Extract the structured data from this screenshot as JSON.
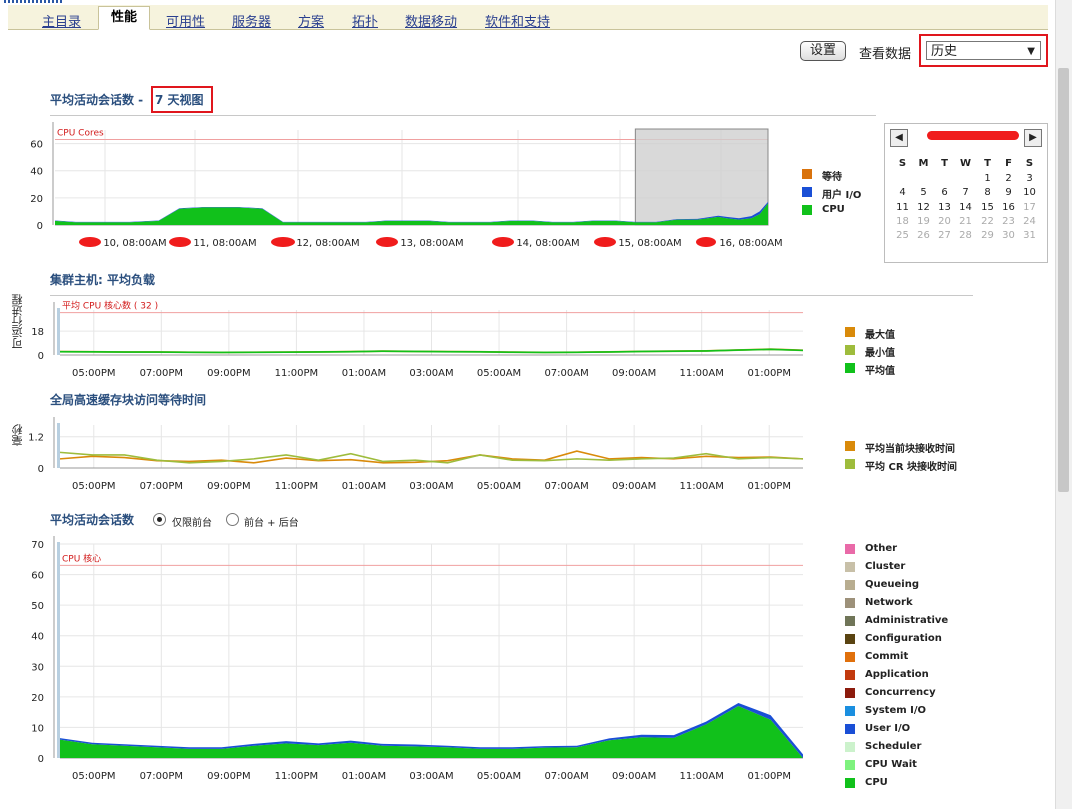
{
  "tabs": [
    {
      "label": "主目录",
      "active": false
    },
    {
      "label": "性能",
      "active": true
    },
    {
      "label": "可用性",
      "active": false
    },
    {
      "label": "服务器",
      "active": false
    },
    {
      "label": "方案",
      "active": false
    },
    {
      "label": "拓扑",
      "active": false
    },
    {
      "label": "数据移动",
      "active": false
    },
    {
      "label": "软件和支持",
      "active": false
    }
  ],
  "toolbar": {
    "settings_label": "设置",
    "view_data_label": "查看数据",
    "view_data_value": "历史"
  },
  "section1": {
    "title": "平均活动会话数 -",
    "link": "7 天视图"
  },
  "section2": {
    "title": "集群主机: 平均负载"
  },
  "section3": {
    "title": "全局高速缓存块访问等待时间"
  },
  "section4": {
    "title": "平均活动会话数",
    "radio1": "仅限前台",
    "radio2": "前台 + 后台"
  },
  "calendar": {
    "headers": [
      "S",
      "M",
      "T",
      "W",
      "T",
      "F",
      "S"
    ],
    "weeks": [
      [
        "",
        "",
        "",
        "",
        "1",
        "2",
        "3"
      ],
      [
        "4",
        "5",
        "6",
        "7",
        "8",
        "9",
        "10"
      ],
      [
        "11",
        "12",
        "13",
        "14",
        "15",
        "16",
        "17"
      ],
      [
        "18",
        "19",
        "20",
        "21",
        "22",
        "23",
        "24"
      ],
      [
        "25",
        "26",
        "27",
        "28",
        "29",
        "30",
        "31"
      ]
    ],
    "grey_from": 17
  },
  "chart_data": [
    {
      "type": "area",
      "title": "平均活动会话数 - 7 天视图",
      "reference_line": {
        "label": "CPU Cores",
        "value": 63
      },
      "ylim": [
        0,
        70
      ],
      "yticks": [
        0,
        20,
        40,
        60
      ],
      "xticks": [
        "10, 08:00AM",
        "11, 08:00AM",
        "12, 08:00AM",
        "13, 08:00AM",
        "14, 08:00AM",
        "15, 08:00AM",
        "16, 08:00AM"
      ],
      "x": [
        0,
        5,
        10,
        12,
        18,
        25,
        30,
        36,
        44,
        50,
        55,
        60,
        65,
        70,
        75,
        80,
        85,
        90,
        95,
        100,
        105,
        110,
        115,
        120,
        125,
        130,
        135,
        140,
        145,
        150,
        155,
        160,
        162,
        165,
        168,
        170,
        172
      ],
      "series": [
        {
          "name": "等待",
          "color": "#d9730d",
          "values": [
            0,
            0,
            0,
            0,
            0,
            0,
            0,
            0,
            0,
            0,
            0,
            0,
            0,
            0,
            0,
            0,
            0,
            0,
            0,
            0,
            0,
            0,
            0,
            0,
            0,
            0,
            0,
            0,
            0,
            0,
            0,
            0,
            0,
            0,
            0,
            0,
            0
          ]
        },
        {
          "name": "用户 I/O",
          "color": "#1a4fd6",
          "values": [
            0.3,
            0.3,
            0.3,
            0.3,
            0.3,
            0.3,
            0.3,
            0.3,
            0.3,
            0.3,
            0.3,
            0.3,
            0.3,
            0.3,
            0.3,
            0.3,
            0.3,
            0.3,
            0.3,
            0.3,
            0.3,
            0.3,
            0.3,
            0.3,
            0.3,
            0.3,
            0.3,
            0.3,
            0.3,
            0.3,
            0.5,
            0.8,
            1.0,
            1.0,
            1.5,
            2.0,
            1.0
          ]
        },
        {
          "name": "CPU",
          "color": "#11c11b",
          "values": [
            3,
            2,
            2,
            2,
            2,
            3,
            12,
            13,
            13,
            12,
            2,
            2,
            2,
            2,
            2,
            3,
            3,
            3,
            2,
            2,
            2,
            3,
            3,
            2,
            2,
            3,
            3,
            2,
            2,
            4,
            4,
            6,
            5,
            4,
            5,
            8,
            16
          ]
        }
      ],
      "selection": {
        "from": 140,
        "to": 172
      },
      "legend_position": "right"
    },
    {
      "type": "line",
      "title": "集群主机: 平均负载",
      "ylabel": "可运行进程",
      "reference_line": {
        "label": "平均 CPU 核心数 ( 32 )",
        "value": 32
      },
      "ylim": [
        0,
        34
      ],
      "yticks": [
        0,
        18
      ],
      "xticks": [
        "05:00PM",
        "07:00PM",
        "09:00PM",
        "11:00PM",
        "01:00AM",
        "03:00AM",
        "05:00AM",
        "07:00AM",
        "09:00AM",
        "11:00AM",
        "01:00PM"
      ],
      "x": [
        0,
        1,
        2,
        3,
        4,
        5,
        6,
        7,
        8,
        9,
        10,
        11,
        12,
        13,
        14,
        15,
        16,
        17,
        18,
        19,
        20,
        21,
        22,
        23
      ],
      "series": [
        {
          "name": "最大值",
          "color": "#d98a0a",
          "values": [
            2.6,
            2.5,
            2.3,
            2.3,
            2.1,
            2.0,
            2.1,
            2.2,
            2.4,
            2.6,
            3.0,
            2.8,
            2.6,
            2.5,
            2.2,
            2.0,
            2.1,
            2.4,
            2.8,
            3.0,
            3.2,
            3.8,
            4.5,
            3.6
          ]
        },
        {
          "name": "最小值",
          "color": "#9ebc3c",
          "values": [
            2.4,
            2.3,
            2.2,
            2.1,
            2.0,
            1.9,
            2.0,
            2.1,
            2.2,
            2.4,
            2.8,
            2.6,
            2.4,
            2.3,
            2.0,
            1.9,
            2.0,
            2.2,
            2.6,
            2.8,
            3.0,
            3.6,
            4.2,
            3.4
          ]
        },
        {
          "name": "平均值",
          "color": "#11c11b",
          "values": [
            2.5,
            2.4,
            2.2,
            2.2,
            2.0,
            1.9,
            2.0,
            2.1,
            2.3,
            2.5,
            2.9,
            2.7,
            2.5,
            2.4,
            2.1,
            1.9,
            2.0,
            2.3,
            2.7,
            2.9,
            3.1,
            3.7,
            4.3,
            3.5
          ]
        }
      ],
      "legend_position": "right"
    },
    {
      "type": "line",
      "title": "全局高速缓存块访问等待时间",
      "ylabel": "毫秒",
      "ylim": [
        0,
        1.65
      ],
      "yticks": [
        0,
        1.2
      ],
      "xticks": [
        "05:00PM",
        "07:00PM",
        "09:00PM",
        "11:00PM",
        "01:00AM",
        "03:00AM",
        "05:00AM",
        "07:00AM",
        "09:00AM",
        "11:00AM",
        "01:00PM"
      ],
      "x": [
        0,
        1,
        2,
        3,
        4,
        5,
        6,
        7,
        8,
        9,
        10,
        11,
        12,
        13,
        14,
        15,
        16,
        17,
        18,
        19,
        20,
        21,
        22,
        23
      ],
      "series": [
        {
          "name": "平均当前块接收时间",
          "color": "#d98a0a",
          "values": [
            0.35,
            0.45,
            0.4,
            0.28,
            0.25,
            0.3,
            0.2,
            0.38,
            0.28,
            0.32,
            0.2,
            0.22,
            0.28,
            0.5,
            0.35,
            0.3,
            0.65,
            0.35,
            0.4,
            0.35,
            0.45,
            0.4,
            0.42,
            0.35
          ]
        },
        {
          "name": "平均 CR 块接收时间",
          "color": "#9ebc3c",
          "values": [
            0.6,
            0.5,
            0.5,
            0.3,
            0.2,
            0.25,
            0.35,
            0.5,
            0.3,
            0.55,
            0.25,
            0.3,
            0.2,
            0.5,
            0.3,
            0.28,
            0.35,
            0.3,
            0.35,
            0.38,
            0.55,
            0.35,
            0.4,
            0.35
          ]
        }
      ],
      "legend_position": "right"
    },
    {
      "type": "area",
      "title": "平均活动会话数",
      "reference_line": {
        "label": "CPU 核心",
        "value": 63
      },
      "ylim": [
        0,
        70
      ],
      "yticks": [
        0,
        10,
        20,
        30,
        40,
        50,
        60,
        70
      ],
      "xticks": [
        "05:00PM",
        "07:00PM",
        "09:00PM",
        "11:00PM",
        "01:00AM",
        "03:00AM",
        "05:00AM",
        "07:00AM",
        "09:00AM",
        "11:00AM",
        "01:00PM"
      ],
      "x": [
        0,
        1,
        2,
        3,
        4,
        5,
        6,
        7,
        8,
        9,
        10,
        11,
        12,
        13,
        14,
        15,
        16,
        17,
        18,
        19,
        20,
        21,
        22,
        23
      ],
      "series": [
        {
          "name": "Other",
          "color": "#e96aa8",
          "values": [
            0,
            0,
            0,
            0,
            0,
            0,
            0,
            0,
            0,
            0,
            0,
            0,
            0,
            0,
            0,
            0,
            0,
            0,
            0,
            0,
            0,
            0,
            0,
            0
          ]
        },
        {
          "name": "Cluster",
          "color": "#c8c0a8",
          "values": [
            0,
            0,
            0,
            0,
            0,
            0,
            0,
            0,
            0,
            0,
            0,
            0,
            0,
            0,
            0,
            0,
            0,
            0,
            0,
            0,
            0,
            0,
            0,
            0
          ]
        },
        {
          "name": "Queueing",
          "color": "#b8ad90",
          "values": [
            0,
            0,
            0,
            0,
            0,
            0,
            0,
            0,
            0,
            0,
            0,
            0,
            0,
            0,
            0,
            0,
            0,
            0,
            0,
            0,
            0,
            0,
            0,
            0
          ]
        },
        {
          "name": "Network",
          "color": "#9d917a",
          "values": [
            0,
            0,
            0,
            0,
            0,
            0,
            0,
            0,
            0,
            0,
            0,
            0,
            0,
            0,
            0,
            0,
            0,
            0,
            0,
            0,
            0,
            0,
            0,
            0
          ]
        },
        {
          "name": "Administrative",
          "color": "#707558",
          "values": [
            0,
            0,
            0,
            0,
            0,
            0,
            0,
            0,
            0,
            0,
            0,
            0,
            0,
            0,
            0,
            0,
            0,
            0,
            0,
            0,
            0,
            0,
            0,
            0
          ]
        },
        {
          "name": "Configuration",
          "color": "#5a4412",
          "values": [
            0,
            0,
            0,
            0,
            0,
            0,
            0,
            0,
            0,
            0,
            0,
            0,
            0,
            0,
            0,
            0,
            0,
            0,
            0,
            0,
            0,
            0,
            0,
            0
          ]
        },
        {
          "name": "Commit",
          "color": "#e0700c",
          "values": [
            0,
            0,
            0,
            0,
            0,
            0,
            0,
            0,
            0,
            0,
            0,
            0,
            0,
            0,
            0,
            0,
            0,
            0,
            0,
            0,
            0,
            0,
            0,
            0
          ]
        },
        {
          "name": "Application",
          "color": "#c23a0e",
          "values": [
            0,
            0,
            0,
            0,
            0,
            0,
            0,
            0,
            0,
            0,
            0,
            0,
            0,
            0,
            0,
            0,
            0,
            0,
            0,
            0,
            0,
            0,
            0,
            0
          ]
        },
        {
          "name": "Concurrency",
          "color": "#8c1b0d",
          "values": [
            0,
            0,
            0,
            0,
            0,
            0,
            0,
            0,
            0,
            0,
            0,
            0,
            0,
            0,
            0,
            0,
            0,
            0,
            0,
            0,
            0,
            0,
            0,
            0
          ]
        },
        {
          "name": "System I/O",
          "color": "#1a8fe0",
          "values": [
            0,
            0,
            0,
            0,
            0,
            0,
            0,
            0,
            0,
            0,
            0,
            0,
            0,
            0,
            0,
            0,
            0,
            0,
            0,
            0,
            0,
            0,
            0,
            0
          ]
        },
        {
          "name": "User I/O",
          "color": "#1a4fd6",
          "values": [
            0.5,
            0.5,
            0.5,
            0.5,
            0.5,
            0.5,
            0.6,
            0.7,
            0.6,
            0.7,
            0.6,
            0.6,
            0.5,
            0.5,
            0.5,
            0.5,
            0.5,
            0.6,
            0.8,
            0.9,
            0.9,
            1.0,
            1.5,
            1.2
          ]
        },
        {
          "name": "Scheduler",
          "color": "#ccf2cc",
          "values": [
            0,
            0,
            0,
            0,
            0,
            0,
            0,
            0,
            0,
            0,
            0,
            0,
            0,
            0,
            0,
            0,
            0,
            0,
            0,
            0,
            0,
            0,
            0,
            0
          ]
        },
        {
          "name": "CPU Wait",
          "color": "#7ef27e",
          "values": [
            0,
            0,
            0,
            0,
            0,
            0,
            0,
            0,
            0,
            0,
            0,
            0,
            0,
            0,
            0,
            0,
            0,
            0,
            0,
            0,
            0,
            0,
            0,
            0
          ]
        },
        {
          "name": "CPU",
          "color": "#11c11b",
          "values": [
            6,
            4.5,
            4,
            3.5,
            3,
            3,
            4,
            4.8,
            4.2,
            5,
            4,
            3.8,
            3.5,
            3,
            3,
            3.4,
            3.5,
            5.8,
            6.8,
            6.6,
            11,
            17,
            12.5,
            0
          ]
        }
      ],
      "legend_position": "right"
    }
  ]
}
